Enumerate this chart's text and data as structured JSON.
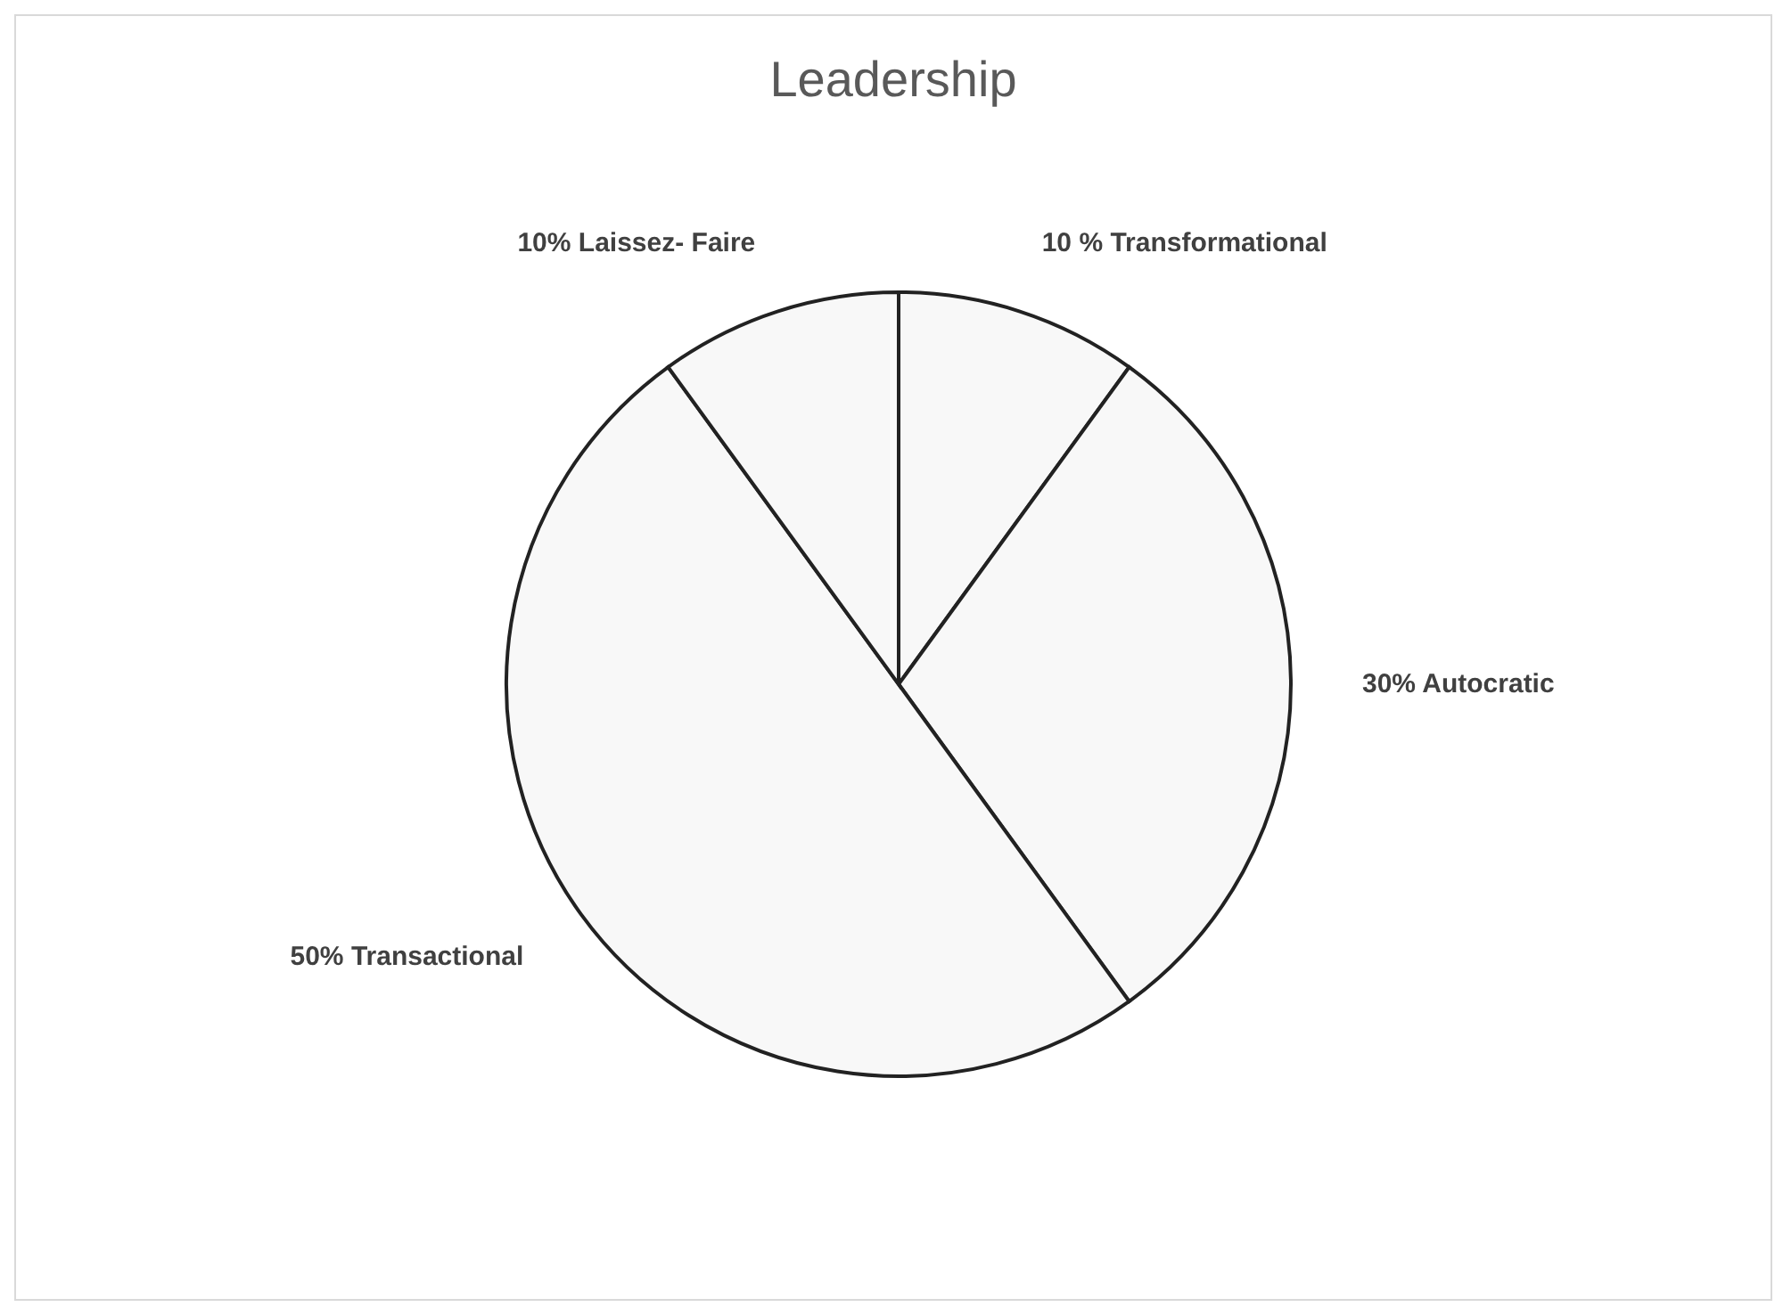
{
  "chart_data": {
    "type": "pie",
    "title": "Leadership",
    "categories": [
      "Transformational",
      "Autocratic",
      "Transactional",
      "Laissez- Faire"
    ],
    "values": [
      10,
      30,
      50,
      10
    ],
    "value_labels": [
      "10 %",
      "30%",
      "50%",
      "10%"
    ],
    "colors": [
      "#f8f8f8",
      "#f8f8f8",
      "#f8f8f8",
      "#f8f8f8"
    ],
    "legend": false
  }
}
